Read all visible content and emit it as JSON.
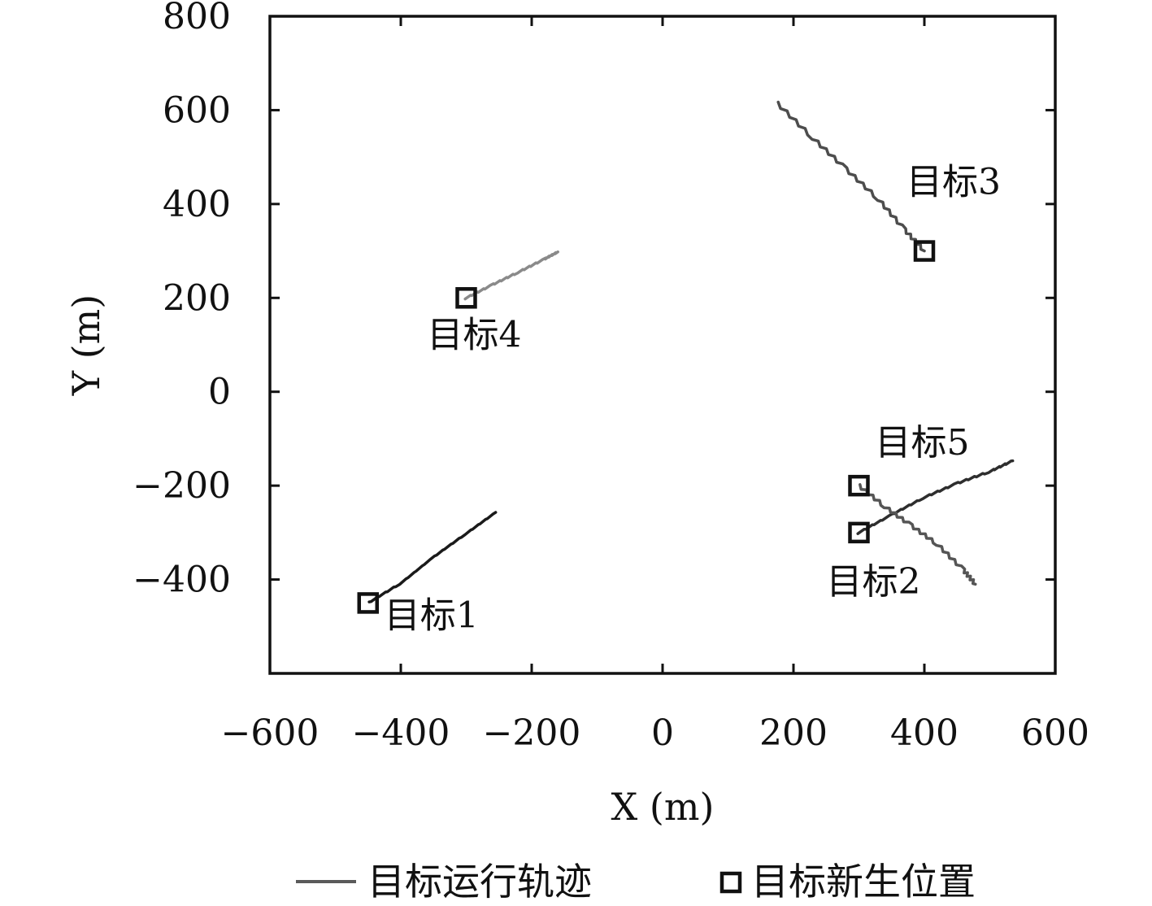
{
  "chart_data": {
    "type": "line",
    "title": "",
    "xlabel": "X (m)",
    "ylabel": "Y (m)",
    "xlim": [
      -600,
      600
    ],
    "ylim": [
      -600,
      800
    ],
    "x_ticks": [
      "−600",
      "−400",
      "−200",
      "0",
      "200",
      "400",
      "600"
    ],
    "y_ticks": [
      "−400",
      "−200",
      "0",
      "200",
      "400",
      "600",
      "800"
    ],
    "grid": false,
    "series": [
      {
        "label": "目标1",
        "color": "#1a1a1a",
        "points": [
          [
            -450,
            -450
          ],
          [
            -400,
            -408
          ],
          [
            -350,
            -352
          ],
          [
            -300,
            -302
          ],
          [
            -255,
            -257
          ]
        ]
      },
      {
        "label": "目标2",
        "color": "#2e2e2e",
        "points": [
          [
            300,
            -300
          ],
          [
            350,
            -262
          ],
          [
            400,
            -225
          ],
          [
            450,
            -195
          ],
          [
            500,
            -170
          ],
          [
            535,
            -147
          ]
        ]
      },
      {
        "label": "目标3",
        "color": "#4d4d4d",
        "points": [
          [
            175,
            615
          ],
          [
            230,
            540
          ],
          [
            280,
            475
          ],
          [
            330,
            410
          ],
          [
            370,
            345
          ],
          [
            400,
            300
          ]
        ]
      },
      {
        "label": "目标4",
        "color": "#8a8a8a",
        "points": [
          [
            -300,
            200
          ],
          [
            -260,
            228
          ],
          [
            -220,
            255
          ],
          [
            -180,
            283
          ],
          [
            -160,
            298
          ]
        ]
      },
      {
        "label": "目标5",
        "color": "#555555",
        "points": [
          [
            300,
            -200
          ],
          [
            340,
            -245
          ],
          [
            380,
            -285
          ],
          [
            420,
            -325
          ],
          [
            460,
            -380
          ],
          [
            478,
            -410
          ]
        ]
      }
    ],
    "new_positions": [
      [
        -450,
        -450
      ],
      [
        300,
        -300
      ],
      [
        400,
        300
      ],
      [
        -300,
        200
      ],
      [
        300,
        -200
      ]
    ],
    "legend": {
      "placement": "bottom",
      "line_entry": "目标运行轨迹",
      "marker_entry": "目标新生位置"
    }
  }
}
